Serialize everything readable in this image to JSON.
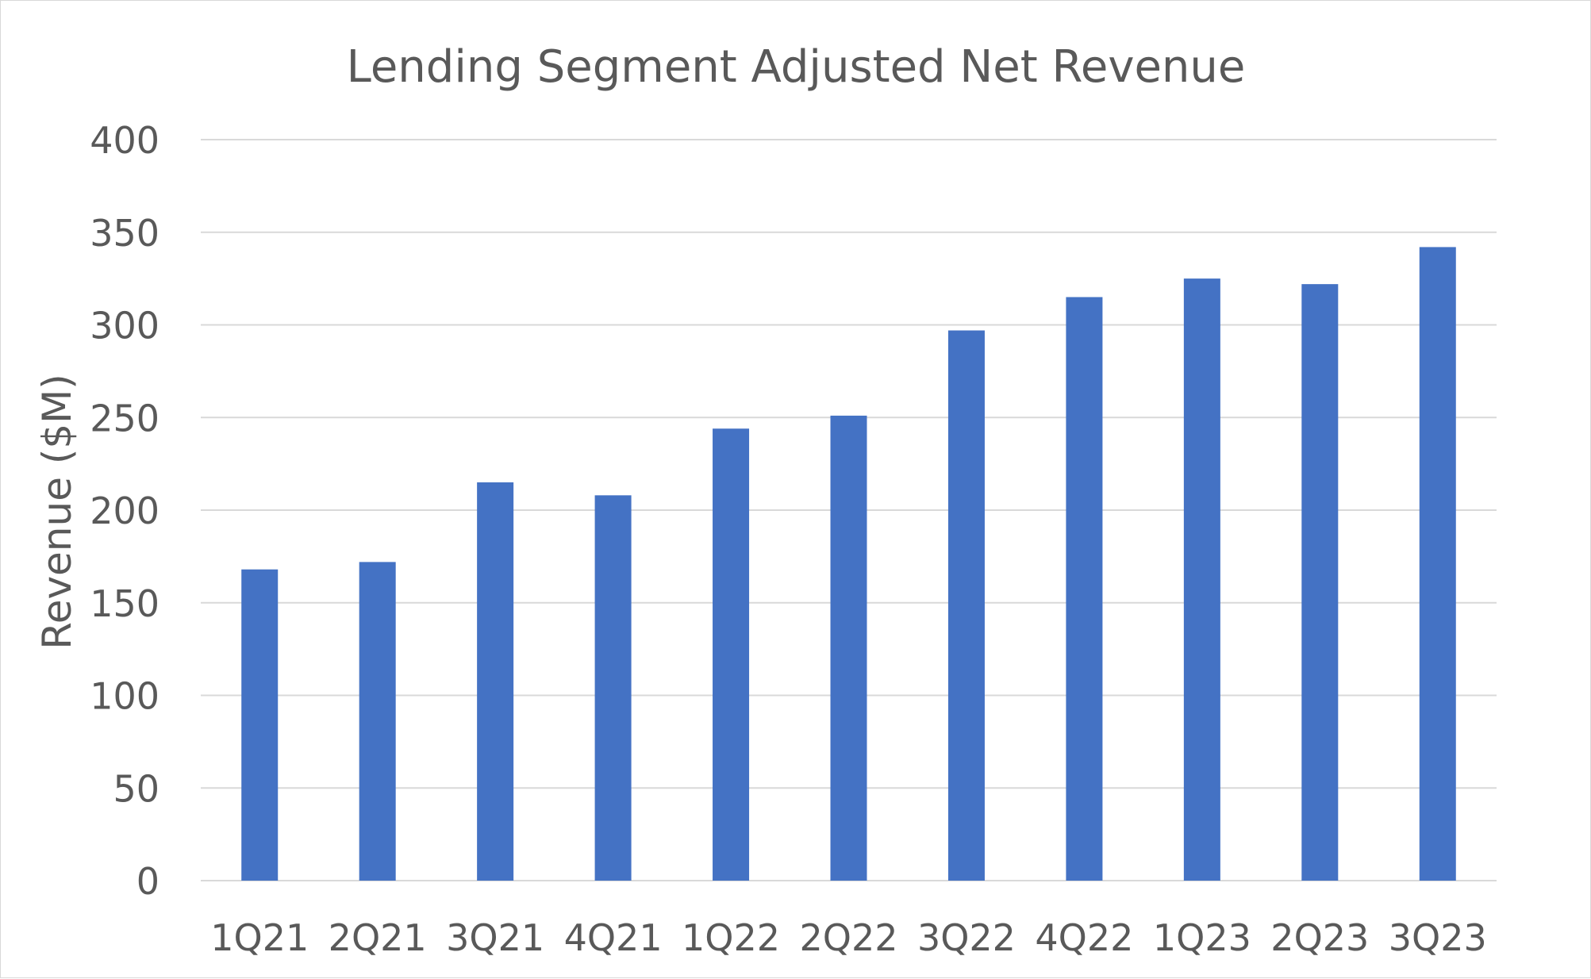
{
  "chart_data": {
    "type": "bar",
    "title": "Lending Segment Adjusted Net Revenue",
    "xlabel": "",
    "ylabel": "Revenue ($M)",
    "ylim": [
      0,
      400
    ],
    "yticks": [
      0,
      50,
      100,
      150,
      200,
      250,
      300,
      350,
      400
    ],
    "grid": true,
    "legend": "none",
    "categories": [
      "1Q21",
      "2Q21",
      "3Q21",
      "4Q21",
      "1Q22",
      "2Q22",
      "3Q22",
      "4Q22",
      "1Q23",
      "2Q23",
      "3Q23"
    ],
    "values": [
      168,
      172,
      215,
      208,
      244,
      251,
      297,
      315,
      325,
      322,
      342
    ],
    "colors": {
      "bar": "#4472C4",
      "grid": "#d9d9d9",
      "text": "#595959"
    }
  }
}
